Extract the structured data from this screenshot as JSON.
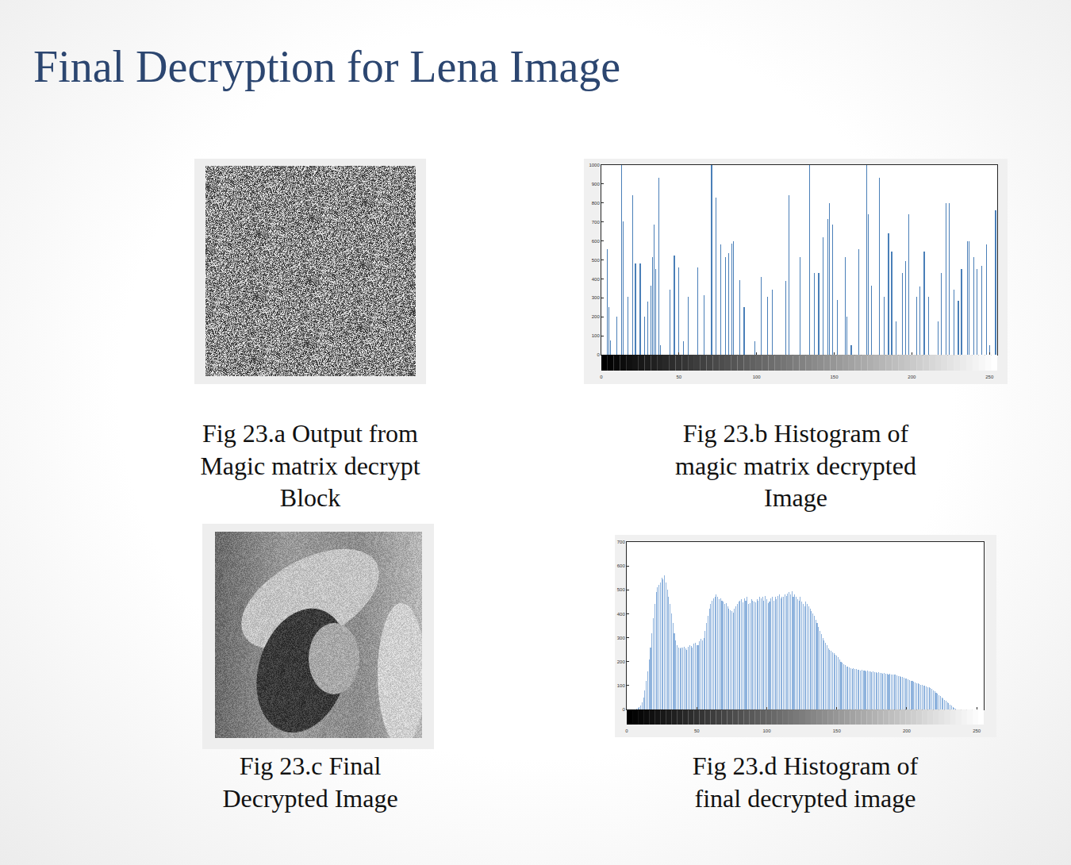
{
  "title": "Final Decryption for Lena Image",
  "captions": {
    "a": [
      "Fig 23.a Output from",
      "Magic matrix decrypt",
      "Block"
    ],
    "b": [
      "Fig 23.b Histogram of",
      "magic matrix decrypted",
      "Image"
    ],
    "c": [
      "Fig 23.c Final",
      "Decrypted Image"
    ],
    "d": [
      "Fig 23.d Histogram of",
      "final decrypted image"
    ]
  },
  "chart_data": [
    {
      "type": "bar",
      "color": "#4a7fb8",
      "x": [
        4,
        5,
        6,
        10,
        13,
        14,
        17,
        20,
        22,
        25,
        28,
        30,
        32,
        33,
        34,
        35,
        37,
        38,
        44,
        47,
        50,
        53,
        56,
        62,
        66,
        71,
        74,
        77,
        80,
        82,
        84,
        85,
        89,
        92,
        99,
        103,
        107,
        110,
        119,
        121,
        128,
        134,
        137,
        140,
        143,
        146,
        147,
        149,
        152,
        157,
        158,
        161,
        166,
        171,
        172,
        174,
        179,
        182,
        185,
        187,
        190,
        194,
        196,
        198,
        203,
        205,
        208,
        211,
        217,
        219,
        222,
        224,
        227,
        230,
        232,
        236,
        237,
        240,
        242,
        245,
        248,
        250,
        254
      ],
      "values": [
        557,
        250,
        76,
        200,
        1000,
        705,
        305,
        840,
        480,
        480,
        200,
        280,
        365,
        515,
        685,
        450,
        935,
        50,
        345,
        525,
        460,
        70,
        305,
        460,
        315,
        1000,
        830,
        580,
        515,
        535,
        585,
        600,
        395,
        250,
        70,
        410,
        305,
        345,
        390,
        840,
        515,
        1000,
        430,
        430,
        620,
        715,
        800,
        685,
        290,
        515,
        200,
        50,
        555,
        1000,
        740,
        365,
        935,
        305,
        640,
        545,
        175,
        430,
        495,
        740,
        305,
        360,
        545,
        305,
        175,
        430,
        800,
        800,
        345,
        285,
        450,
        600,
        600,
        515,
        450,
        470,
        580,
        50,
        760
      ],
      "xlim": [
        0,
        255
      ],
      "xticks": [
        0,
        50,
        100,
        150,
        200,
        250
      ],
      "ylim": [
        0,
        1000
      ],
      "yticks": [
        0,
        100,
        200,
        300,
        400,
        500,
        600,
        700,
        800,
        900,
        1000
      ]
    },
    {
      "type": "bar",
      "color": "#8fb3dd",
      "x": [
        0,
        1,
        2,
        3,
        4,
        5,
        6,
        7,
        8,
        9,
        10,
        11,
        12,
        13,
        14,
        15,
        16,
        17,
        18,
        19,
        20,
        21,
        22,
        23,
        24,
        25,
        26,
        27,
        28,
        29,
        30,
        31,
        32,
        33,
        34,
        35,
        36,
        37,
        38,
        39,
        40,
        41,
        42,
        43,
        44,
        45,
        46,
        47,
        48,
        49,
        50,
        51,
        52,
        53,
        54,
        55,
        56,
        57,
        58,
        59,
        60,
        61,
        62,
        63,
        64,
        65,
        66,
        67,
        68,
        69,
        70,
        71,
        72,
        73,
        74,
        75,
        76,
        77,
        78,
        79,
        80,
        81,
        82,
        83,
        84,
        85,
        86,
        87,
        88,
        89,
        90,
        91,
        92,
        93,
        94,
        95,
        96,
        97,
        98,
        99,
        100,
        101,
        102,
        103,
        104,
        105,
        106,
        107,
        108,
        109,
        110,
        111,
        112,
        113,
        114,
        115,
        116,
        117,
        118,
        119,
        120,
        121,
        122,
        123,
        124,
        125,
        126,
        127,
        128,
        129,
        130,
        131,
        132,
        133,
        134,
        135,
        136,
        137,
        138,
        139,
        140,
        141,
        142,
        143,
        144,
        145,
        146,
        147,
        148,
        149,
        150,
        151,
        152,
        153,
        154,
        155,
        156,
        157,
        158,
        159,
        160,
        161,
        162,
        163,
        164,
        165,
        166,
        167,
        168,
        169,
        170,
        171,
        172,
        173,
        174,
        175,
        176,
        177,
        178,
        179,
        180,
        181,
        182,
        183,
        184,
        185,
        186,
        187,
        188,
        189,
        190,
        191,
        192,
        193,
        194,
        195,
        196,
        197,
        198,
        199,
        200,
        201,
        202,
        203,
        204,
        205,
        206,
        207,
        208,
        209,
        210,
        211,
        212,
        213,
        214,
        215,
        216,
        217,
        218,
        219,
        220,
        221,
        222,
        223,
        224,
        225,
        226,
        227,
        228,
        229,
        230,
        231,
        232,
        233,
        234,
        235,
        236,
        237,
        238,
        239,
        240,
        241,
        242,
        243,
        244,
        245,
        246,
        247,
        248,
        249,
        250,
        251,
        252,
        253,
        254,
        255
      ],
      "values": [
        0,
        0,
        0,
        0,
        0,
        0,
        0,
        2,
        5,
        10,
        18,
        30,
        50,
        80,
        120,
        160,
        210,
        260,
        320,
        380,
        440,
        490,
        510,
        520,
        530,
        550,
        545,
        560,
        530,
        500,
        470,
        440,
        400,
        360,
        320,
        290,
        270,
        260,
        255,
        260,
        258,
        262,
        255,
        250,
        262,
        270,
        265,
        260,
        275,
        280,
        270,
        268,
        285,
        295,
        290,
        300,
        330,
        360,
        390,
        420,
        440,
        455,
        465,
        470,
        480,
        470,
        460,
        465,
        455,
        450,
        440,
        445,
        430,
        420,
        415,
        410,
        405,
        420,
        430,
        440,
        450,
        455,
        460,
        448,
        465,
        455,
        470,
        440,
        445,
        460,
        455,
        450,
        448,
        460,
        455,
        470,
        465,
        470,
        455,
        475,
        460,
        445,
        450,
        465,
        470,
        455,
        470,
        460,
        475,
        480,
        465,
        470,
        470,
        480,
        475,
        485,
        490,
        480,
        495,
        470,
        480,
        470,
        460,
        455,
        470,
        450,
        440,
        430,
        450,
        440,
        430,
        420,
        410,
        400,
        390,
        375,
        360,
        345,
        330,
        315,
        300,
        290,
        280,
        268,
        255,
        250,
        245,
        240,
        235,
        230,
        225,
        220,
        210,
        200,
        195,
        190,
        185,
        180,
        178,
        175,
        172,
        170,
        171,
        168,
        169,
        166,
        167,
        164,
        165,
        162,
        163,
        160,
        161,
        158,
        159,
        157,
        158,
        156,
        157,
        154,
        155,
        152,
        153,
        150,
        151,
        148,
        149,
        147,
        148,
        146,
        147,
        145,
        145,
        142,
        140,
        138,
        136,
        135,
        132,
        130,
        128,
        125,
        122,
        120,
        118,
        115,
        112,
        110,
        108,
        106,
        104,
        102,
        100,
        98,
        96,
        94,
        92,
        90,
        85,
        80,
        75,
        70,
        65,
        60,
        55,
        50,
        45,
        40,
        35,
        30,
        25,
        20,
        15,
        10,
        6,
        3,
        1,
        0,
        0,
        0,
        0,
        0,
        0,
        0,
        0,
        0,
        0,
        0,
        0,
        0,
        0,
        0,
        0,
        0,
        0,
        0
      ],
      "xlim": [
        0,
        255
      ],
      "xticks": [
        0,
        50,
        100,
        150,
        200,
        250
      ],
      "ylim": [
        0,
        700
      ],
      "yticks": [
        0,
        100,
        200,
        300,
        400,
        500,
        600,
        700
      ]
    }
  ]
}
